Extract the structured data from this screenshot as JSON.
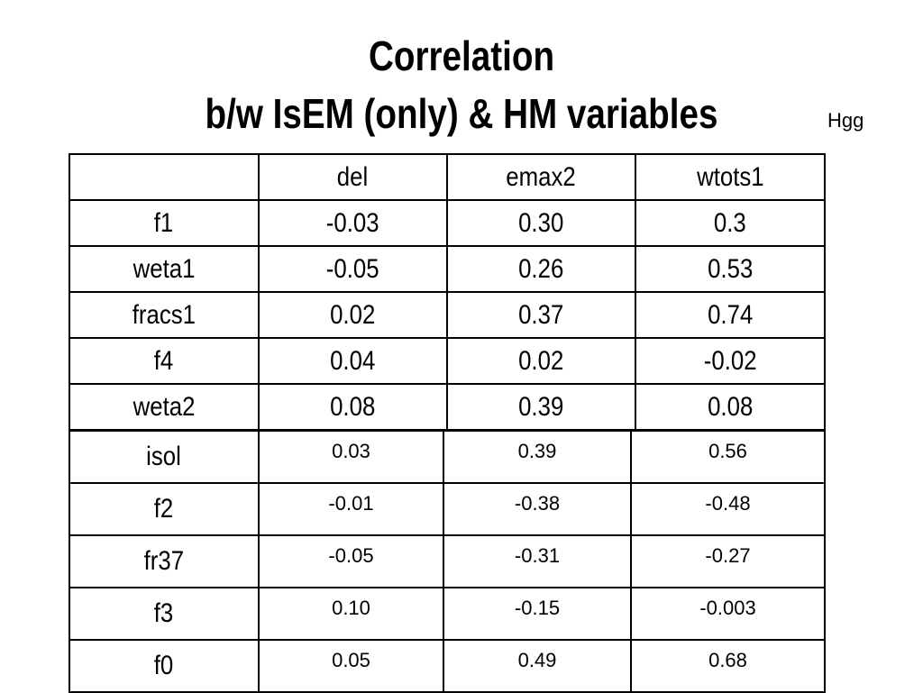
{
  "title": {
    "line1": "Correlation",
    "line2": "b/w IsEM (only) & HM variables"
  },
  "tag": "Hgg",
  "table": {
    "columns": [
      "",
      "del",
      "emax2",
      "wtots1"
    ],
    "rows_top": [
      {
        "label": "f1",
        "values": [
          "-0.03",
          "0.30",
          "0.3"
        ]
      },
      {
        "label": "weta1",
        "values": [
          "-0.05",
          "0.26",
          "0.53"
        ]
      },
      {
        "label": "fracs1",
        "values": [
          "0.02",
          "0.37",
          "0.74"
        ]
      },
      {
        "label": "f4",
        "values": [
          "0.04",
          "0.02",
          "-0.02"
        ]
      },
      {
        "label": "weta2",
        "values": [
          "0.08",
          "0.39",
          "0.08"
        ]
      }
    ],
    "rows_bottom": [
      {
        "label": "isol",
        "values": [
          "0.03",
          "0.39",
          "0.56"
        ]
      },
      {
        "label": "f2",
        "values": [
          "-0.01",
          "-0.38",
          "-0.48"
        ]
      },
      {
        "label": "fr37",
        "values": [
          "-0.05",
          "-0.31",
          "-0.27"
        ]
      },
      {
        "label": "f3",
        "values": [
          "0.10",
          "-0.15",
          "-0.003"
        ]
      },
      {
        "label": "f0",
        "values": [
          "0.05",
          "0.49",
          "0.68"
        ]
      }
    ]
  }
}
